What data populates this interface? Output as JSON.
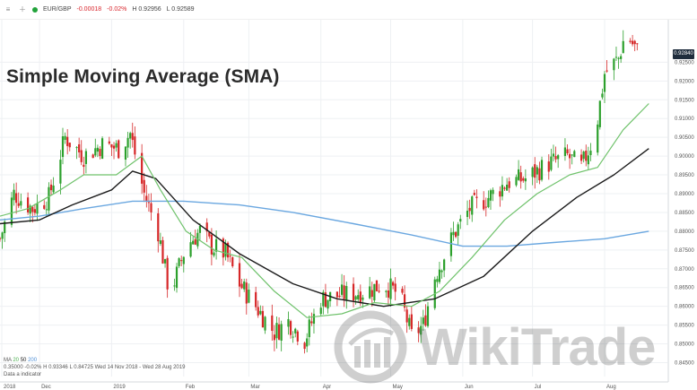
{
  "topbar": {
    "pair": "EUR/GBP",
    "change": "-0.00018",
    "change_pct": "-0.02%",
    "high": "H 0.92956",
    "low": "L 0.92589"
  },
  "headline": "Simple Moving Average (SMA)",
  "price_tag": "0.92840",
  "legend": {
    "ma_label": "MA",
    "ma_periods": [
      "20",
      "50",
      "200"
    ],
    "stats": [
      "0.35000",
      "-0.02%",
      "H 0.93346",
      "L 0.84725",
      "Wed 14 Nov 2018 - Wed 28 Aug 2019"
    ],
    "footnote": "Data a indicator"
  },
  "watermark": "WikiTrade",
  "colors": {
    "bull": "#2ca02c",
    "bear": "#d62728",
    "ma20": "#6fc26b",
    "ma50": "#1a1a1a",
    "ma200": "#6aa7e0",
    "grid": "#eef0f3",
    "axis_text": "#555555"
  },
  "chart_data": {
    "type": "candlestick",
    "title": "Simple Moving Average (SMA)",
    "ylim": [
      0.8413,
      0.9344
    ],
    "yticks": [
      "0.92500",
      "0.92000",
      "0.91500",
      "0.91000",
      "0.90500",
      "0.90000",
      "0.89500",
      "0.89000",
      "0.88500",
      "0.88000",
      "0.87500",
      "0.87000",
      "0.86500",
      "0.86000",
      "0.85500",
      "0.85000",
      "0.84500"
    ],
    "xticks": [
      "2018",
      "Dec",
      "2019",
      "Feb",
      "Mar",
      "Apr",
      "May",
      "Jun",
      "Jul",
      "Aug"
    ],
    "x_start": "2018-11-14",
    "x_end": "2019-08-28",
    "close_path": [
      [
        "2018-11-14",
        0.878
      ],
      [
        "2018-11-20",
        0.89
      ],
      [
        "2018-11-28",
        0.886
      ],
      [
        "2018-12-05",
        0.889
      ],
      [
        "2018-12-12",
        0.905
      ],
      [
        "2018-12-20",
        0.9
      ],
      [
        "2018-12-28",
        0.903
      ],
      [
        "2019-01-04",
        0.902
      ],
      [
        "2019-01-09",
        0.906
      ],
      [
        "2019-01-15",
        0.89
      ],
      [
        "2019-01-21",
        0.88
      ],
      [
        "2019-01-26",
        0.863
      ],
      [
        "2019-02-02",
        0.876
      ],
      [
        "2019-02-08",
        0.88
      ],
      [
        "2019-02-13",
        0.876
      ],
      [
        "2019-02-19",
        0.874
      ],
      [
        "2019-02-25",
        0.866
      ],
      [
        "2019-03-04",
        0.86
      ],
      [
        "2019-03-12",
        0.853
      ],
      [
        "2019-03-18",
        0.856
      ],
      [
        "2019-03-25",
        0.851
      ],
      [
        "2019-04-01",
        0.862
      ],
      [
        "2019-04-10",
        0.863
      ],
      [
        "2019-04-20",
        0.864
      ],
      [
        "2019-04-28",
        0.866
      ],
      [
        "2019-05-05",
        0.863
      ],
      [
        "2019-05-10",
        0.852
      ],
      [
        "2019-05-15",
        0.855
      ],
      [
        "2019-05-20",
        0.868
      ],
      [
        "2019-05-28",
        0.879
      ],
      [
        "2019-06-04",
        0.886
      ],
      [
        "2019-06-12",
        0.889
      ],
      [
        "2019-06-20",
        0.893
      ],
      [
        "2019-06-28",
        0.894
      ],
      [
        "2019-07-08",
        0.898
      ],
      [
        "2019-07-16",
        0.9
      ],
      [
        "2019-07-22",
        0.897
      ],
      [
        "2019-07-28",
        0.906
      ],
      [
        "2019-08-01",
        0.922
      ],
      [
        "2019-08-07",
        0.926
      ],
      [
        "2019-08-10",
        0.9328
      ],
      [
        "2019-08-15",
        0.928
      ]
    ],
    "sma20": [
      [
        "2018-11-14",
        0.884
      ],
      [
        "2018-11-26",
        0.886
      ],
      [
        "2018-12-10",
        0.891
      ],
      [
        "2018-12-20",
        0.895
      ],
      [
        "2019-01-03",
        0.895
      ],
      [
        "2019-01-14",
        0.9
      ],
      [
        "2019-01-22",
        0.891
      ],
      [
        "2019-02-02",
        0.88
      ],
      [
        "2019-02-14",
        0.875
      ],
      [
        "2019-02-26",
        0.873
      ],
      [
        "2019-03-12",
        0.864
      ],
      [
        "2019-03-26",
        0.857
      ],
      [
        "2019-04-10",
        0.858
      ],
      [
        "2019-04-24",
        0.861
      ],
      [
        "2019-05-10",
        0.86
      ],
      [
        "2019-05-22",
        0.864
      ],
      [
        "2019-06-05",
        0.873
      ],
      [
        "2019-06-19",
        0.883
      ],
      [
        "2019-07-03",
        0.89
      ],
      [
        "2019-07-17",
        0.895
      ],
      [
        "2019-07-29",
        0.897
      ],
      [
        "2019-08-09",
        0.907
      ],
      [
        "2019-08-20",
        0.914
      ]
    ],
    "sma50": [
      [
        "2018-11-14",
        0.882
      ],
      [
        "2018-12-01",
        0.883
      ],
      [
        "2018-12-15",
        0.887
      ],
      [
        "2019-01-01",
        0.891
      ],
      [
        "2019-01-10",
        0.896
      ],
      [
        "2019-01-20",
        0.894
      ],
      [
        "2019-02-05",
        0.883
      ],
      [
        "2019-02-25",
        0.874
      ],
      [
        "2019-03-20",
        0.866
      ],
      [
        "2019-04-08",
        0.862
      ],
      [
        "2019-04-28",
        0.86
      ],
      [
        "2019-05-20",
        0.862
      ],
      [
        "2019-06-10",
        0.868
      ],
      [
        "2019-07-01",
        0.88
      ],
      [
        "2019-07-20",
        0.889
      ],
      [
        "2019-08-05",
        0.895
      ],
      [
        "2019-08-20",
        0.902
      ]
    ],
    "sma200": [
      [
        "2018-11-14",
        0.883
      ],
      [
        "2018-12-01",
        0.884
      ],
      [
        "2018-12-20",
        0.886
      ],
      [
        "2019-01-10",
        0.888
      ],
      [
        "2019-02-01",
        0.888
      ],
      [
        "2019-02-25",
        0.887
      ],
      [
        "2019-03-20",
        0.885
      ],
      [
        "2019-04-15",
        0.882
      ],
      [
        "2019-05-10",
        0.879
      ],
      [
        "2019-06-01",
        0.876
      ],
      [
        "2019-06-20",
        0.876
      ],
      [
        "2019-07-10",
        0.877
      ],
      [
        "2019-08-01",
        0.878
      ],
      [
        "2019-08-20",
        0.88
      ]
    ],
    "legend": [
      "MA 20",
      "50",
      "200"
    ]
  }
}
